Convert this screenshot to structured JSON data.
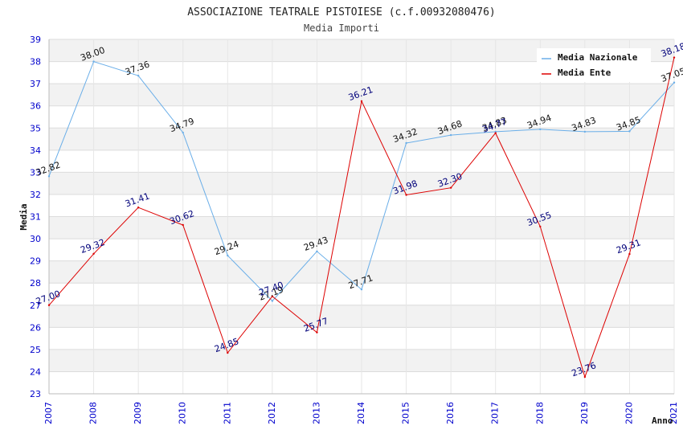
{
  "chart_data": {
    "type": "line",
    "title": "ASSOCIAZIONE TEATRALE PISTOIESE (c.f.00932080476)",
    "subtitle": "Media Importi",
    "xlabel": "Anno",
    "ylabel": "Media",
    "ylim": [
      23,
      39
    ],
    "yticks": [
      23,
      24,
      25,
      26,
      27,
      28,
      29,
      30,
      31,
      32,
      33,
      34,
      35,
      36,
      37,
      38,
      39
    ],
    "categories": [
      "2007",
      "2008",
      "2009",
      "2010",
      "2011",
      "2012",
      "2013",
      "2014",
      "2015",
      "2016",
      "2017",
      "2018",
      "2019",
      "2020",
      "2021"
    ],
    "legend_position": "top-right",
    "grid": true,
    "series": [
      {
        "name": "Media Nazionale",
        "color": "#6aaee8",
        "label_color": "#111111",
        "values": [
          32.82,
          38.0,
          37.36,
          34.79,
          29.24,
          27.19,
          29.43,
          27.71,
          34.32,
          34.68,
          34.83,
          34.94,
          34.83,
          34.85,
          37.05
        ],
        "labels": [
          "32.82",
          "38.00",
          "37.36",
          "34.79",
          "29.24",
          "27.19",
          "29.43",
          "27.71",
          "34.32",
          "34.68",
          "34.83",
          "34.94",
          "34.83",
          "34.85",
          "37.05"
        ]
      },
      {
        "name": "Media Ente",
        "color": "#dd0000",
        "label_color": "#00007a",
        "values": [
          27.0,
          29.32,
          31.41,
          30.62,
          24.85,
          27.4,
          25.77,
          36.21,
          31.98,
          32.3,
          34.77,
          30.55,
          23.76,
          29.31,
          38.18
        ],
        "labels": [
          "27.00",
          "29.32",
          "31.41",
          "30.62",
          "24.85",
          "27.40",
          "25.77",
          "36.21",
          "31.98",
          "32.30",
          "34.77",
          "30.55",
          "23.76",
          "29.31",
          "38.18"
        ]
      }
    ]
  }
}
